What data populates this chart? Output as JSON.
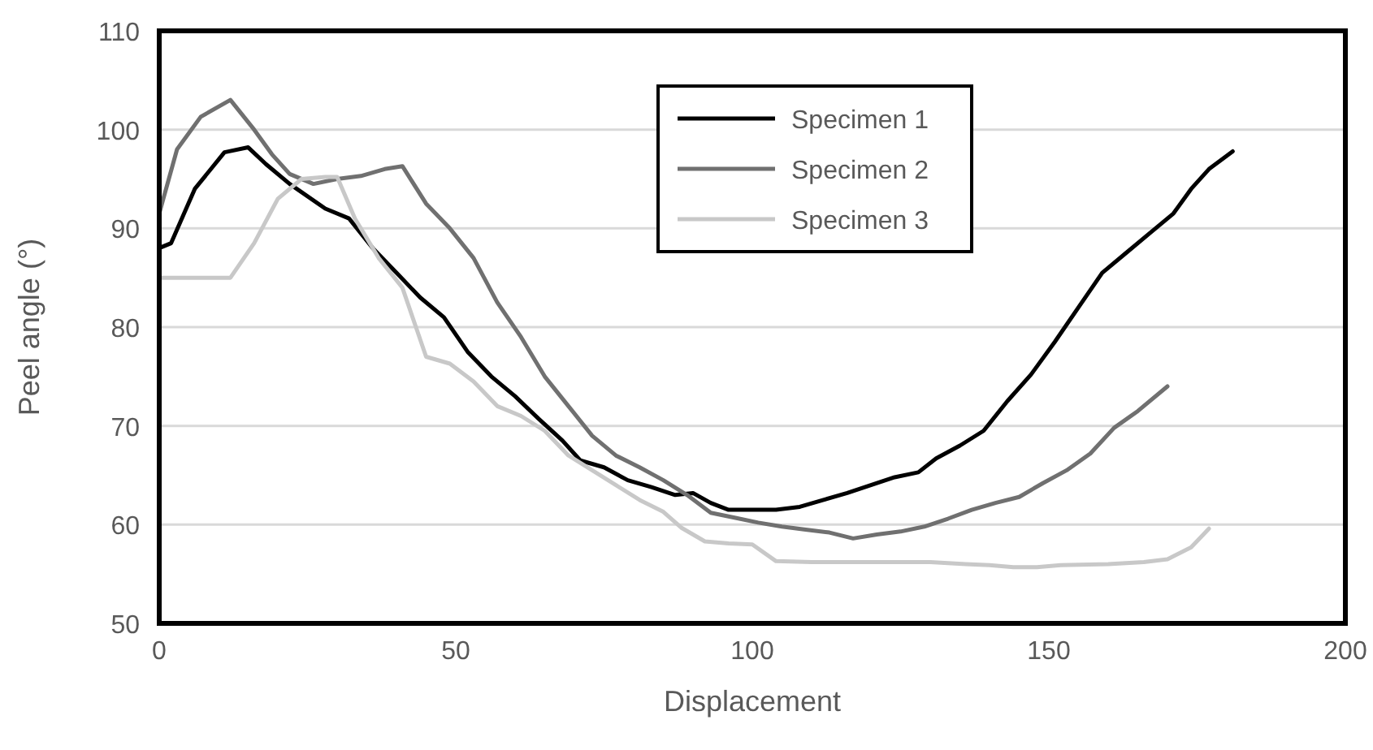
{
  "chart_data": {
    "type": "line",
    "xlabel": "Displacement",
    "ylabel": "Peel angle (°)",
    "xlim": [
      0,
      200
    ],
    "ylim": [
      50,
      110
    ],
    "xticks": [
      0,
      50,
      100,
      150,
      200
    ],
    "yticks": [
      50,
      60,
      70,
      80,
      90,
      100,
      110
    ],
    "grid": "y",
    "legend": "top",
    "marker": "none",
    "line_style": "solid",
    "series": [
      {
        "name": "Specimen 1",
        "color": "#000000",
        "x": [
          0,
          2,
          6,
          11,
          15,
          18,
          22,
          28,
          32,
          36,
          40,
          44,
          48,
          52,
          56,
          60,
          64,
          68,
          71,
          75,
          79,
          83,
          87,
          90,
          93,
          96,
          100,
          104,
          108,
          112,
          116,
          120,
          124,
          128,
          131,
          135,
          139,
          143,
          147,
          151,
          155,
          159,
          163,
          167,
          171,
          174,
          177,
          181
        ],
        "values": [
          88,
          88.5,
          94,
          97.7,
          98.2,
          96.5,
          94.5,
          92,
          91,
          88,
          85.5,
          83,
          81,
          77.5,
          75,
          73,
          70.7,
          68.5,
          66.5,
          65.8,
          64.5,
          63.8,
          63,
          63.2,
          62.2,
          61.5,
          61.5,
          61.5,
          61.8,
          62.5,
          63.2,
          64,
          64.8,
          65.3,
          66.7,
          68,
          69.5,
          72.5,
          75.2,
          78.5,
          82,
          85.5,
          87.5,
          89.5,
          91.5,
          94,
          96,
          97.8
        ]
      },
      {
        "name": "Specimen 2",
        "color": "#707070",
        "x": [
          0,
          3,
          7,
          12,
          16,
          19,
          22,
          26,
          30,
          34,
          38,
          41,
          45,
          49,
          53,
          57,
          61,
          65,
          69,
          73,
          77,
          81,
          85,
          89,
          93,
          97,
          101,
          105,
          109,
          113,
          117,
          121,
          125,
          129,
          133,
          137,
          141,
          145,
          149,
          153,
          157,
          161,
          165,
          170
        ],
        "values": [
          91.5,
          98,
          101.3,
          103,
          100,
          97.5,
          95.5,
          94.5,
          95,
          95.3,
          96,
          96.3,
          92.5,
          90,
          87,
          82.5,
          79,
          75,
          72,
          69,
          67,
          65.8,
          64.5,
          63,
          61.2,
          60.7,
          60.2,
          59.8,
          59.5,
          59.2,
          58.6,
          59,
          59.3,
          59.8,
          60.6,
          61.5,
          62.2,
          62.8,
          64.2,
          65.5,
          67.2,
          69.8,
          71.5,
          74
        ]
      },
      {
        "name": "Specimen 3",
        "color": "#c8c8c8",
        "x": [
          0,
          4,
          8,
          12,
          16,
          20,
          24,
          28,
          30,
          33,
          37,
          41,
          45,
          49,
          53,
          57,
          61,
          65,
          69,
          73,
          77,
          81,
          85,
          88,
          92,
          96,
          100,
          104,
          110,
          120,
          130,
          136,
          140,
          144,
          148,
          152,
          160,
          166,
          170,
          174,
          177
        ],
        "values": [
          85,
          85,
          85,
          85,
          88.5,
          93,
          95,
          95.2,
          95.2,
          91,
          87,
          84,
          77,
          76.3,
          74.5,
          72,
          71,
          69.5,
          67,
          65.5,
          64,
          62.5,
          61.3,
          59.7,
          58.3,
          58.1,
          58,
          56.3,
          56.2,
          56.2,
          56.2,
          56,
          55.9,
          55.7,
          55.7,
          55.9,
          56,
          56.2,
          56.5,
          57.7,
          59.6
        ]
      }
    ]
  }
}
